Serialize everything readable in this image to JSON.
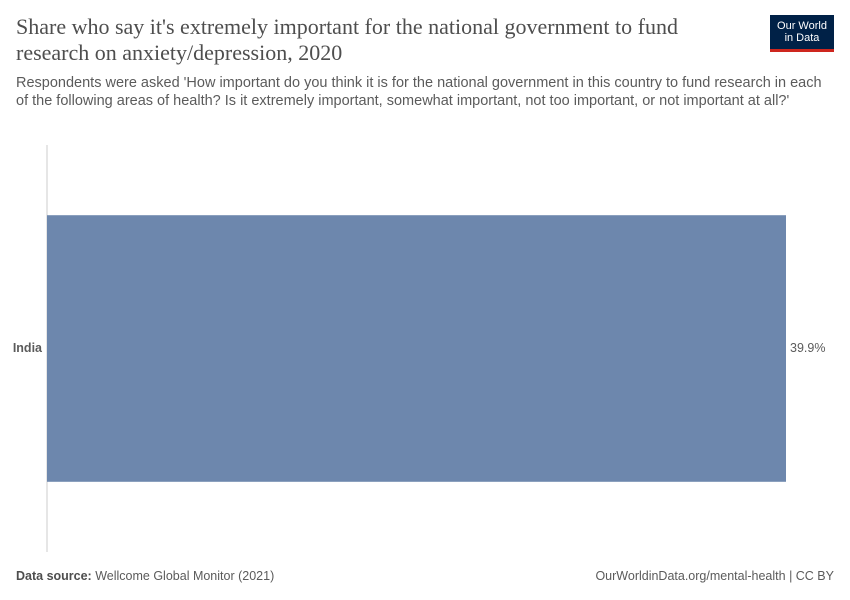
{
  "chart_data": {
    "type": "bar",
    "orientation": "horizontal",
    "title": "Share who say it's extremely important for the national government to fund research on anxiety/depression, 2020",
    "subtitle": "Respondents were asked 'How important do you think it is for the national government in this country to fund research in each of the following areas of health? Is it extremely important, somewhat important, not too important, or not important at all?'",
    "categories": [
      "India"
    ],
    "values": [
      39.9
    ],
    "value_labels": [
      "39.9%"
    ],
    "color": "#6d87ad",
    "source_label": "Data source:",
    "source": "Wellcome Global Monitor (2021)",
    "url": "OurWorldinData.org/mental-health | CC BY",
    "logo": [
      "Our World",
      "in Data"
    ]
  }
}
